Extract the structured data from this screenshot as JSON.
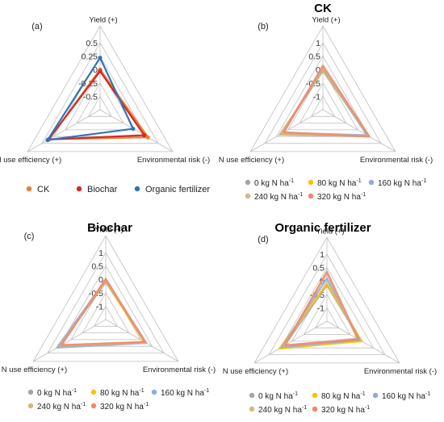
{
  "axes": {
    "yield": "Yield (+)",
    "env": "Environmental risk  (-)",
    "nue": "N use efficiency (+)"
  },
  "legend_unit_main": "kg N ha",
  "legend_unit_sup": "-1",
  "chart_data": [
    {
      "panel": "(a)",
      "title": "",
      "type": "radar",
      "axes": [
        "Yield (+)",
        "Environmental risk  (-)",
        "N use efficiency (+)"
      ],
      "ticks": [
        "0.5",
        "0.25",
        "0",
        "-0.25",
        "-0.5"
      ],
      "range": [
        -0.75,
        0.5
      ],
      "legend_position": "bottom",
      "series": [
        {
          "name": "CK",
          "color": "#ED7D31",
          "values": [
            0.0,
            0.28,
            0.35
          ]
        },
        {
          "name": "Biochar",
          "color": "#D62728",
          "values": [
            -0.03,
            0.2,
            0.36
          ]
        },
        {
          "name": "Organic fertilizer",
          "color": "#2E75B6",
          "values": [
            0.22,
            -0.04,
            0.38
          ]
        }
      ]
    },
    {
      "panel": "(b)",
      "title": "CK",
      "type": "radar",
      "axes": [
        "Yield (+)",
        "Environmental risk  (-)",
        "N use efficiency (+)"
      ],
      "ticks": [
        "1",
        "0.5",
        "0",
        "-0.5",
        "-1"
      ],
      "range": [
        -1.5,
        1
      ],
      "legend_position": "bottom",
      "series": [
        {
          "name": "0 kg N ha-1",
          "label": "0",
          "color": "#A5A5A5",
          "values": [
            -0.05,
            0.5,
            0.35
          ]
        },
        {
          "name": "80 kg N ha-1",
          "label": "80",
          "color": "#FFC000",
          "values": [
            0.0,
            0.45,
            0.3
          ]
        },
        {
          "name": "160 kg N ha-1",
          "label": "160",
          "color": "#8FAADC",
          "values": [
            0.05,
            0.4,
            0.22
          ]
        },
        {
          "name": "240 kg N ha-1",
          "label": "240",
          "color": "#D6B77D",
          "values": [
            0.08,
            0.48,
            0.28
          ]
        },
        {
          "name": "320 kg N ha-1",
          "label": "320",
          "color": "#F4866B",
          "values": [
            0.15,
            0.5,
            0.18
          ]
        }
      ]
    },
    {
      "panel": "(c)",
      "title": "Biochar",
      "type": "radar",
      "axes": [
        "Yield (+)",
        "Environmental risk  (-)",
        "N use efficiency (+)"
      ],
      "ticks": [
        "1",
        "0.5",
        "0",
        "-0.5",
        "-1"
      ],
      "range": [
        -1.5,
        1
      ],
      "legend_position": "bottom",
      "series": [
        {
          "name": "0 kg N ha-1",
          "label": "0",
          "color": "#A5A5A5",
          "values": [
            -0.1,
            0.2,
            0.5
          ]
        },
        {
          "name": "80 kg N ha-1",
          "label": "80",
          "color": "#FFC000",
          "values": [
            -0.05,
            0.15,
            0.55
          ]
        },
        {
          "name": "160 kg N ha-1",
          "label": "160",
          "color": "#8FAADC",
          "values": [
            -0.02,
            0.25,
            0.6
          ]
        },
        {
          "name": "240 kg N ha-1",
          "label": "240",
          "color": "#D6B77D",
          "values": [
            0.0,
            0.22,
            0.45
          ]
        },
        {
          "name": "320 kg N ha-1",
          "label": "320",
          "color": "#F4866B",
          "values": [
            0.02,
            0.18,
            0.4
          ]
        }
      ]
    },
    {
      "panel": "(d)",
      "title": "Organic fertilizer",
      "type": "radar",
      "axes": [
        "Yield (+)",
        "Environmental risk  (-)",
        "N use efficiency (+)"
      ],
      "ticks": [
        "1",
        "0.5",
        "0",
        "-0.5",
        "-1"
      ],
      "range": [
        -1.5,
        1
      ],
      "legend_position": "bottom",
      "series": [
        {
          "name": "0 kg N ha-1",
          "label": "0",
          "color": "#A5A5A5",
          "values": [
            -0.15,
            -0.05,
            0.35
          ]
        },
        {
          "name": "80 kg N ha-1",
          "label": "80",
          "color": "#FFC000",
          "values": [
            -0.1,
            0.0,
            0.55
          ]
        },
        {
          "name": "160 kg N ha-1",
          "label": "160",
          "color": "#8FAADC",
          "values": [
            0.1,
            -0.1,
            0.45
          ]
        },
        {
          "name": "240 kg N ha-1",
          "label": "240",
          "color": "#D6B77D",
          "values": [
            0.3,
            -0.2,
            0.35
          ]
        },
        {
          "name": "320 kg N ha-1",
          "label": "320",
          "color": "#F4866B",
          "values": [
            0.35,
            -0.15,
            0.3
          ]
        }
      ]
    }
  ]
}
